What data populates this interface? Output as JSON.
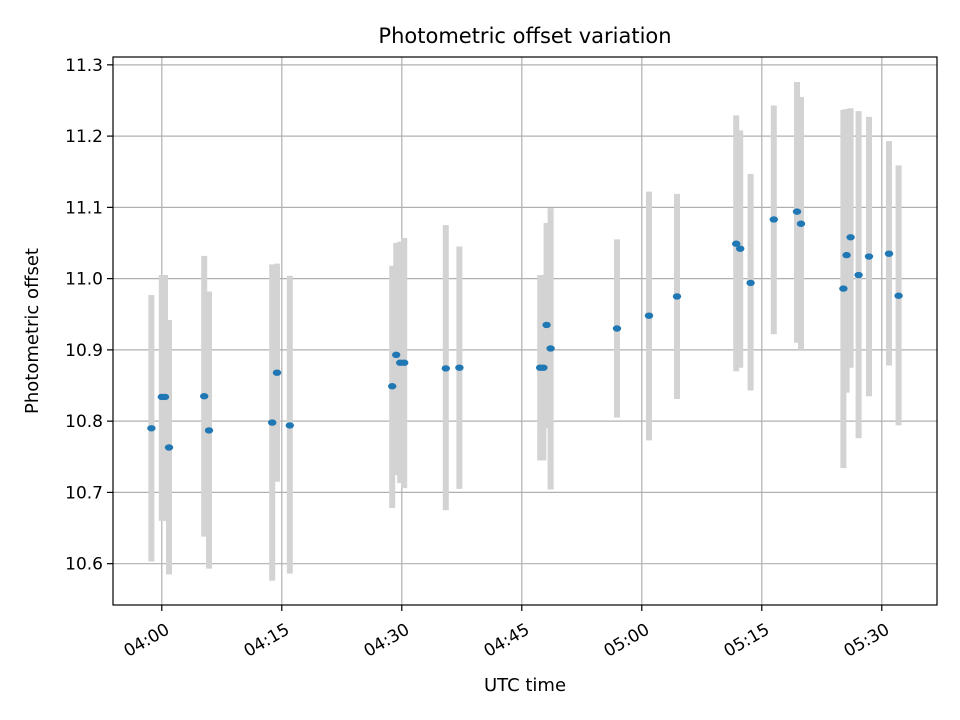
{
  "chart_data": {
    "type": "scatter",
    "title": "Photometric offset variation",
    "xlabel": "UTC time",
    "ylabel": "Photometric offset",
    "x_tick_labels": [
      "04:00",
      "04:15",
      "04:30",
      "04:45",
      "05:00",
      "05:15",
      "05:30"
    ],
    "x_ticks_minutes": [
      0,
      15,
      30,
      45,
      60,
      75,
      90
    ],
    "y_ticks": [
      10.6,
      10.7,
      10.8,
      10.9,
      11.0,
      11.1,
      11.2,
      11.3
    ],
    "xlim_minutes": [
      -6.1,
      96.9
    ],
    "ylim": [
      10.542,
      11.311
    ],
    "grid": true,
    "colors": {
      "point": "#1f77b4",
      "errorbar": "#d3d3d3",
      "grid": "#b0b0b0"
    },
    "series": [
      {
        "points": [
          {
            "t": -1.3,
            "y": 10.79,
            "lo": 10.603,
            "hi": 10.977
          },
          {
            "t": 0.0,
            "y": 10.834,
            "lo": 10.66,
            "hi": 11.005
          },
          {
            "t": 0.4,
            "y": 10.834,
            "lo": 10.66,
            "hi": 11.005
          },
          {
            "t": 0.9,
            "y": 10.763,
            "lo": 10.585,
            "hi": 10.942
          },
          {
            "t": 5.3,
            "y": 10.835,
            "lo": 10.638,
            "hi": 11.032
          },
          {
            "t": 5.9,
            "y": 10.787,
            "lo": 10.593,
            "hi": 10.982
          },
          {
            "t": 13.8,
            "y": 10.798,
            "lo": 10.576,
            "hi": 11.02
          },
          {
            "t": 14.4,
            "y": 10.868,
            "lo": 10.715,
            "hi": 11.021
          },
          {
            "t": 16.0,
            "y": 10.794,
            "lo": 10.586,
            "hi": 11.004
          },
          {
            "t": 28.8,
            "y": 10.849,
            "lo": 10.678,
            "hi": 11.018
          },
          {
            "t": 29.3,
            "y": 10.893,
            "lo": 10.724,
            "hi": 11.05
          },
          {
            "t": 29.8,
            "y": 10.882,
            "lo": 10.713,
            "hi": 11.052
          },
          {
            "t": 30.3,
            "y": 10.882,
            "lo": 10.706,
            "hi": 11.057
          },
          {
            "t": 35.5,
            "y": 10.874,
            "lo": 10.675,
            "hi": 11.075
          },
          {
            "t": 37.2,
            "y": 10.875,
            "lo": 10.705,
            "hi": 11.045
          },
          {
            "t": 47.3,
            "y": 10.875,
            "lo": 10.745,
            "hi": 11.005
          },
          {
            "t": 47.7,
            "y": 10.875,
            "lo": 10.745,
            "hi": 11.005
          },
          {
            "t": 48.1,
            "y": 10.935,
            "lo": 10.79,
            "hi": 11.078
          },
          {
            "t": 48.6,
            "y": 10.902,
            "lo": 10.704,
            "hi": 11.099
          },
          {
            "t": 56.9,
            "y": 10.93,
            "lo": 10.805,
            "hi": 11.055
          },
          {
            "t": 60.9,
            "y": 10.948,
            "lo": 10.773,
            "hi": 11.122
          },
          {
            "t": 64.4,
            "y": 10.975,
            "lo": 10.831,
            "hi": 11.119
          },
          {
            "t": 71.8,
            "y": 11.049,
            "lo": 10.87,
            "hi": 11.229
          },
          {
            "t": 72.3,
            "y": 11.042,
            "lo": 10.875,
            "hi": 11.208
          },
          {
            "t": 73.6,
            "y": 10.994,
            "lo": 10.843,
            "hi": 11.147
          },
          {
            "t": 76.5,
            "y": 11.083,
            "lo": 10.922,
            "hi": 11.243
          },
          {
            "t": 79.4,
            "y": 11.094,
            "lo": 10.91,
            "hi": 11.276
          },
          {
            "t": 79.9,
            "y": 11.077,
            "lo": 10.9,
            "hi": 11.255
          },
          {
            "t": 85.2,
            "y": 10.986,
            "lo": 10.734,
            "hi": 11.237
          },
          {
            "t": 85.6,
            "y": 11.033,
            "lo": 10.84,
            "hi": 11.238
          },
          {
            "t": 86.1,
            "y": 11.058,
            "lo": 10.875,
            "hi": 11.239
          },
          {
            "t": 87.1,
            "y": 11.005,
            "lo": 10.776,
            "hi": 11.235
          },
          {
            "t": 88.4,
            "y": 11.031,
            "lo": 10.835,
            "hi": 11.227
          },
          {
            "t": 90.9,
            "y": 11.035,
            "lo": 10.878,
            "hi": 11.193
          },
          {
            "t": 92.1,
            "y": 10.976,
            "lo": 10.794,
            "hi": 11.159
          }
        ]
      }
    ]
  }
}
